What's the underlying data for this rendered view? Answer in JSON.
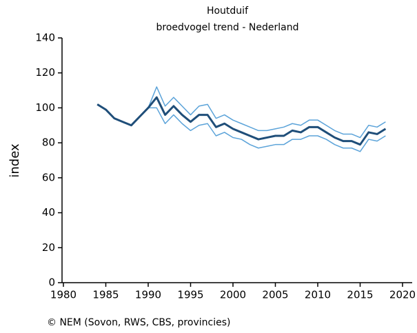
{
  "chart_data": {
    "type": "line",
    "title": "Houtduif",
    "subtitle": "broedvogel trend - Nederland",
    "ylabel": "index",
    "source": "© NEM (Sovon, RWS, CBS, provincies)",
    "x": [
      1984,
      1985,
      1986,
      1987,
      1988,
      1989,
      1990,
      1991,
      1992,
      1993,
      1994,
      1995,
      1996,
      1997,
      1998,
      1999,
      2000,
      2001,
      2002,
      2003,
      2004,
      2005,
      2006,
      2007,
      2008,
      2009,
      2010,
      2011,
      2012,
      2013,
      2014,
      2015,
      2016,
      2017,
      2018
    ],
    "series": [
      {
        "color": "#5ba3d9",
        "width": 1.5,
        "values": [
          102,
          99,
          94,
          92,
          90,
          95,
          100,
          112,
          101,
          106,
          101,
          96,
          101,
          102,
          94,
          96,
          93,
          91,
          89,
          87,
          87,
          88,
          89,
          91,
          90,
          93,
          93,
          90,
          87,
          85,
          85,
          83,
          90,
          89,
          92
        ]
      },
      {
        "color": "#5ba3d9",
        "width": 1.5,
        "values": [
          102,
          99,
          94,
          92,
          90,
          95,
          100,
          100,
          91,
          96,
          91,
          87,
          90,
          91,
          84,
          86,
          83,
          82,
          79,
          77,
          78,
          79,
          79,
          82,
          82,
          84,
          84,
          82,
          79,
          77,
          77,
          75,
          82,
          81,
          84
        ]
      },
      {
        "color": "#1f4e79",
        "width": 3,
        "values": [
          102,
          99,
          94,
          92,
          90,
          95,
          100,
          106,
          96,
          101,
          96,
          92,
          96,
          96,
          89,
          91,
          88,
          86,
          84,
          82,
          83,
          84,
          84,
          87,
          86,
          89,
          89,
          86,
          83,
          81,
          81,
          79,
          86,
          85,
          88
        ]
      }
    ],
    "xlim": [
      1980,
      2020
    ],
    "xticks": [
      1980,
      1985,
      1990,
      1995,
      2000,
      2005,
      2010,
      2015,
      2020
    ],
    "ylim": [
      0,
      140
    ],
    "yticks": [
      0,
      20,
      40,
      60,
      80,
      100,
      120,
      140
    ]
  }
}
